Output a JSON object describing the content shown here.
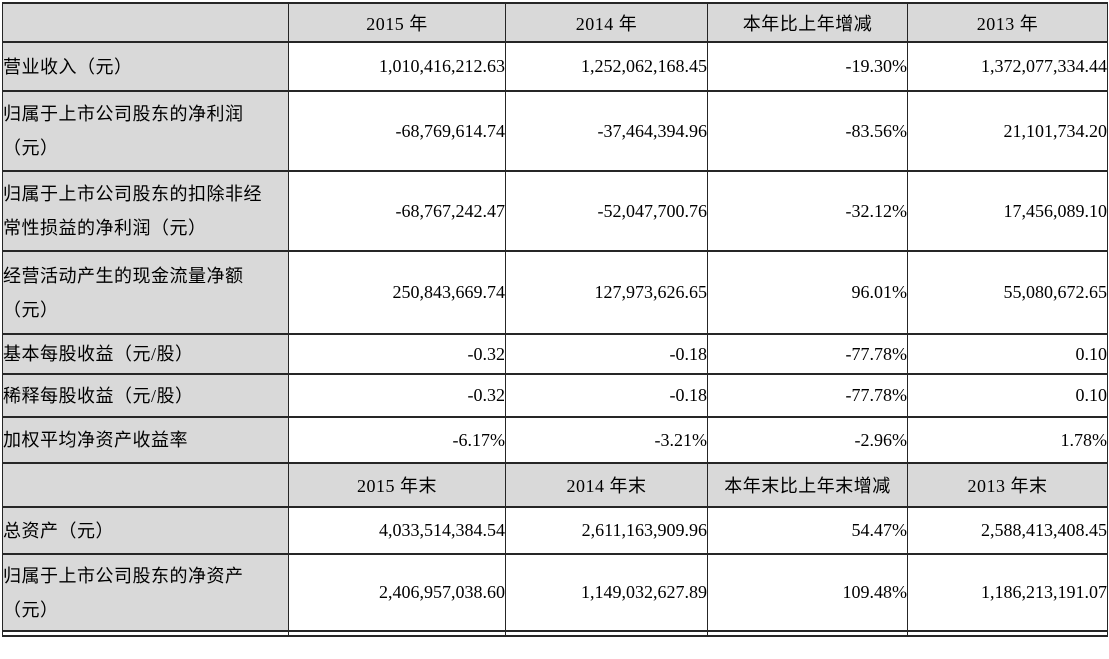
{
  "colors": {
    "header_bg": "#d9d9d9",
    "label_bg": "#d9d9d9",
    "cell_bg": "#ffffff",
    "border": "#262626",
    "text": "#000000"
  },
  "table": {
    "top_header": [
      "",
      "2015 年",
      "2014 年",
      "本年比上年增减",
      "2013 年"
    ],
    "top_rows": [
      [
        "营业收入（元）",
        "1,010,416,212.63",
        "1,252,062,168.45",
        "-19.30%",
        "1,372,077,334.44"
      ],
      [
        "归属于上市公司股东的净利润\n（元）",
        "-68,769,614.74",
        "-37,464,394.96",
        "-83.56%",
        "21,101,734.20"
      ],
      [
        "归属于上市公司股东的扣除非经\n常性损益的净利润（元）",
        "-68,767,242.47",
        "-52,047,700.76",
        "-32.12%",
        "17,456,089.10"
      ],
      [
        "经营活动产生的现金流量净额\n（元）",
        "250,843,669.74",
        "127,973,626.65",
        "96.01%",
        "55,080,672.65"
      ],
      [
        "基本每股收益（元/股）",
        "-0.32",
        "-0.18",
        "-77.78%",
        "0.10"
      ],
      [
        "稀释每股收益（元/股）",
        "-0.32",
        "-0.18",
        "-77.78%",
        "0.10"
      ],
      [
        "加权平均净资产收益率",
        "-6.17%",
        "-3.21%",
        "-2.96%",
        "1.78%"
      ]
    ],
    "bottom_header": [
      "",
      "2015 年末",
      "2014 年末",
      "本年末比上年末增减",
      "2013 年末"
    ],
    "bottom_rows": [
      [
        "总资产（元）",
        "4,033,514,384.54",
        "2,611,163,909.96",
        "54.47%",
        "2,588,413,408.45"
      ],
      [
        "归属于上市公司股东的净资产\n（元）",
        "2,406,957,038.60",
        "1,149,032,627.89",
        "109.48%",
        "1,186,213,191.07"
      ]
    ]
  }
}
